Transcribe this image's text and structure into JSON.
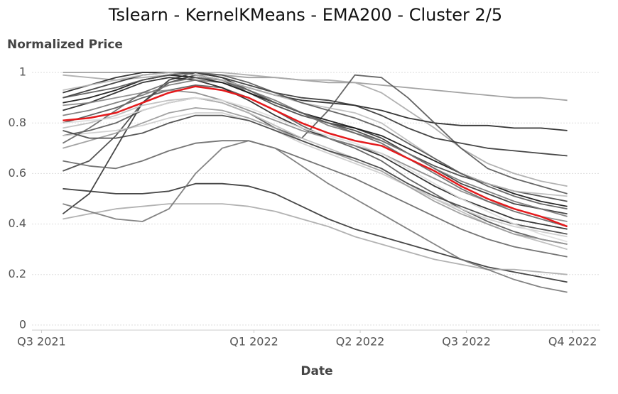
{
  "chart_data": {
    "type": "line",
    "title": "Tslearn - KernelKMeans - EMA200 - Cluster 2/5",
    "y_label": "Normalized Price",
    "x_label": "Date",
    "x": [
      0.2,
      0.45,
      0.7,
      0.95,
      1.2,
      1.45,
      1.7,
      1.95,
      2.2,
      2.45,
      2.7,
      2.95,
      3.2,
      3.45,
      3.7,
      3.95,
      4.2,
      4.45,
      4.7,
      4.95
    ],
    "xlim": [
      -0.09,
      5.26
    ],
    "xticks": [
      {
        "value": 0,
        "label": "Q3 2021"
      },
      {
        "value": 2,
        "label": "Q1 2022"
      },
      {
        "value": 3,
        "label": "Q2 2022"
      },
      {
        "value": 4,
        "label": "Q3 2022"
      },
      {
        "value": 5,
        "label": "Q4 2022"
      }
    ],
    "ylim": [
      -0.02,
      1.02
    ],
    "yticks": [
      0,
      0.2,
      0.4,
      0.6,
      0.8,
      1
    ],
    "grid": true,
    "series": [
      {
        "color": "#999999",
        "values": [
          1.0,
          1.0,
          1.0,
          1.0,
          1.0,
          0.99,
          0.99,
          0.98,
          0.98,
          0.97,
          0.96,
          0.96,
          0.95,
          0.94,
          0.93,
          0.92,
          0.91,
          0.9,
          0.9,
          0.89
        ]
      },
      {
        "color": "#aaaaaa",
        "values": [
          0.99,
          0.98,
          0.97,
          0.98,
          0.99,
          1.0,
          1.0,
          0.99,
          0.98,
          0.97,
          0.97,
          0.96,
          0.92,
          0.85,
          0.78,
          0.7,
          0.64,
          0.6,
          0.57,
          0.55
        ]
      },
      {
        "color": "#222222",
        "values": [
          0.92,
          0.95,
          0.98,
          1.0,
          1.0,
          0.99,
          0.97,
          0.94,
          0.91,
          0.89,
          0.88,
          0.87,
          0.85,
          0.82,
          0.8,
          0.79,
          0.79,
          0.78,
          0.78,
          0.77
        ]
      },
      {
        "color": "#555555",
        "values": [
          0.75,
          0.77,
          0.8,
          0.85,
          0.88,
          0.9,
          0.88,
          0.84,
          0.78,
          0.74,
          0.85,
          0.99,
          0.98,
          0.9,
          0.8,
          0.7,
          0.62,
          0.58,
          0.55,
          0.52
        ]
      },
      {
        "color": "#333333",
        "values": [
          0.9,
          0.93,
          0.96,
          0.99,
          1.0,
          1.0,
          0.98,
          0.95,
          0.92,
          0.9,
          0.89,
          0.87,
          0.83,
          0.78,
          0.74,
          0.72,
          0.7,
          0.69,
          0.68,
          0.67
        ]
      },
      {
        "color": "#333333",
        "values": [
          0.44,
          0.52,
          0.7,
          0.88,
          0.97,
          1.0,
          0.98,
          0.93,
          0.88,
          0.84,
          0.8,
          0.78,
          0.74,
          0.68,
          0.62,
          0.56,
          0.52,
          0.48,
          0.46,
          0.44
        ]
      },
      {
        "color": "#444444",
        "values": [
          0.61,
          0.65,
          0.75,
          0.88,
          0.96,
          0.99,
          0.97,
          0.92,
          0.87,
          0.83,
          0.8,
          0.77,
          0.73,
          0.68,
          0.63,
          0.59,
          0.56,
          0.53,
          0.51,
          0.49
        ]
      },
      {
        "color": "#666666",
        "values": [
          0.65,
          0.63,
          0.62,
          0.65,
          0.69,
          0.72,
          0.73,
          0.73,
          0.7,
          0.66,
          0.62,
          0.58,
          0.53,
          0.48,
          0.43,
          0.38,
          0.34,
          0.31,
          0.29,
          0.27
        ]
      },
      {
        "color": "#333333",
        "values": [
          0.54,
          0.53,
          0.52,
          0.52,
          0.53,
          0.56,
          0.56,
          0.55,
          0.52,
          0.47,
          0.42,
          0.38,
          0.35,
          0.32,
          0.29,
          0.26,
          0.23,
          0.21,
          0.19,
          0.17
        ]
      },
      {
        "color": "#aaaaaa",
        "values": [
          0.42,
          0.44,
          0.46,
          0.47,
          0.48,
          0.48,
          0.48,
          0.47,
          0.45,
          0.42,
          0.39,
          0.35,
          0.32,
          0.29,
          0.26,
          0.24,
          0.22,
          0.22,
          0.21,
          0.2
        ]
      },
      {
        "color": "#777777",
        "values": [
          0.48,
          0.45,
          0.42,
          0.41,
          0.46,
          0.6,
          0.7,
          0.73,
          0.7,
          0.63,
          0.56,
          0.5,
          0.44,
          0.38,
          0.32,
          0.26,
          0.22,
          0.18,
          0.15,
          0.13
        ]
      },
      {
        "color": "#555555",
        "values": [
          0.8,
          0.83,
          0.86,
          0.9,
          0.93,
          0.95,
          0.94,
          0.9,
          0.85,
          0.79,
          0.74,
          0.7,
          0.65,
          0.58,
          0.52,
          0.46,
          0.41,
          0.37,
          0.34,
          0.32
        ]
      },
      {
        "color": "#222222",
        "values": [
          0.85,
          0.88,
          0.92,
          0.96,
          0.98,
          0.97,
          0.94,
          0.89,
          0.83,
          0.78,
          0.74,
          0.71,
          0.67,
          0.61,
          0.55,
          0.5,
          0.46,
          0.42,
          0.4,
          0.38
        ]
      },
      {
        "color": "#bbbbbb",
        "values": [
          0.78,
          0.8,
          0.83,
          0.87,
          0.89,
          0.9,
          0.88,
          0.84,
          0.79,
          0.74,
          0.7,
          0.66,
          0.62,
          0.56,
          0.5,
          0.45,
          0.4,
          0.36,
          0.33,
          0.3
        ]
      },
      {
        "color": "#cccccc",
        "values": [
          0.75,
          0.76,
          0.77,
          0.79,
          0.82,
          0.84,
          0.84,
          0.81,
          0.77,
          0.72,
          0.68,
          0.64,
          0.6,
          0.55,
          0.5,
          0.46,
          0.42,
          0.39,
          0.37,
          0.35
        ]
      },
      {
        "color": "#777777",
        "values": [
          0.83,
          0.85,
          0.88,
          0.91,
          0.95,
          0.97,
          0.96,
          0.93,
          0.89,
          0.84,
          0.79,
          0.76,
          0.73,
          0.68,
          0.62,
          0.57,
          0.53,
          0.49,
          0.46,
          0.43
        ]
      },
      {
        "color": "#111111",
        "values": [
          0.88,
          0.9,
          0.93,
          0.97,
          0.99,
          0.98,
          0.96,
          0.92,
          0.88,
          0.84,
          0.81,
          0.78,
          0.75,
          0.7,
          0.65,
          0.6,
          0.56,
          0.52,
          0.49,
          0.47
        ]
      },
      {
        "color": "#999999",
        "values": [
          0.7,
          0.73,
          0.76,
          0.8,
          0.84,
          0.86,
          0.85,
          0.82,
          0.78,
          0.73,
          0.69,
          0.65,
          0.61,
          0.55,
          0.49,
          0.44,
          0.4,
          0.36,
          0.34,
          0.32
        ]
      },
      {
        "color": "#444444",
        "values": [
          0.77,
          0.74,
          0.74,
          0.76,
          0.8,
          0.83,
          0.83,
          0.81,
          0.77,
          0.73,
          0.69,
          0.66,
          0.62,
          0.56,
          0.51,
          0.47,
          0.43,
          0.4,
          0.38,
          0.36
        ]
      },
      {
        "color": "#888888",
        "values": [
          0.87,
          0.88,
          0.9,
          0.92,
          0.93,
          0.92,
          0.89,
          0.85,
          0.81,
          0.77,
          0.74,
          0.71,
          0.68,
          0.63,
          0.58,
          0.53,
          0.49,
          0.46,
          0.43,
          0.41
        ]
      },
      {
        "color": "#666666",
        "values": [
          0.72,
          0.78,
          0.85,
          0.92,
          0.96,
          0.98,
          0.97,
          0.93,
          0.88,
          0.84,
          0.8,
          0.76,
          0.72,
          0.66,
          0.6,
          0.54,
          0.49,
          0.45,
          0.42,
          0.39
        ]
      },
      {
        "color": "#bbbbbb",
        "values": [
          0.93,
          0.95,
          0.97,
          0.99,
          1.0,
          0.99,
          0.97,
          0.94,
          0.91,
          0.88,
          0.86,
          0.84,
          0.8,
          0.73,
          0.66,
          0.6,
          0.56,
          0.53,
          0.52,
          0.51
        ]
      },
      {
        "color": "#dddddd",
        "values": [
          0.8,
          0.81,
          0.82,
          0.85,
          0.88,
          0.9,
          0.89,
          0.86,
          0.82,
          0.78,
          0.75,
          0.72,
          0.68,
          0.62,
          0.56,
          0.5,
          0.45,
          0.4,
          0.36,
          0.33
        ]
      },
      {
        "color": "#555555",
        "values": [
          0.9,
          0.92,
          0.94,
          0.97,
          0.99,
          1.0,
          0.99,
          0.96,
          0.92,
          0.88,
          0.85,
          0.82,
          0.78,
          0.72,
          0.66,
          0.6,
          0.55,
          0.51,
          0.48,
          0.46
        ]
      },
      {
        "color": "#e41a1c",
        "values": [
          0.81,
          0.82,
          0.84,
          0.88,
          0.92,
          0.945,
          0.93,
          0.9,
          0.85,
          0.8,
          0.76,
          0.73,
          0.71,
          0.66,
          0.61,
          0.55,
          0.5,
          0.46,
          0.43,
          0.39
        ]
      }
    ]
  }
}
